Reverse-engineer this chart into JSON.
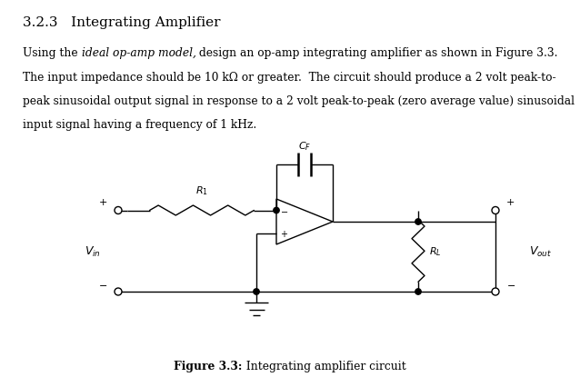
{
  "title": "3.2.3   Integrating Amplifier",
  "line1a": "Using the ",
  "line1b": "ideal op-amp model,",
  "line1c": " design an op-amp integrating amplifier as shown in Figure 3.3.",
  "line2": "The input impedance should be 10 kΩ or greater.  The circuit should produce a 2 volt peak-to-",
  "line3": "peak sinusoidal output signal in response to a 2 volt peak-to-peak (zero average value) sinusoidal",
  "line4": "input signal having a frequency of 1 kHz.",
  "caption_bold": "Figure 3.3:",
  "caption_normal": " Integrating amplifier circuit",
  "background": "#ffffff",
  "text_color": "#000000",
  "fig_width": 6.38,
  "fig_height": 4.27,
  "dpi": 100
}
